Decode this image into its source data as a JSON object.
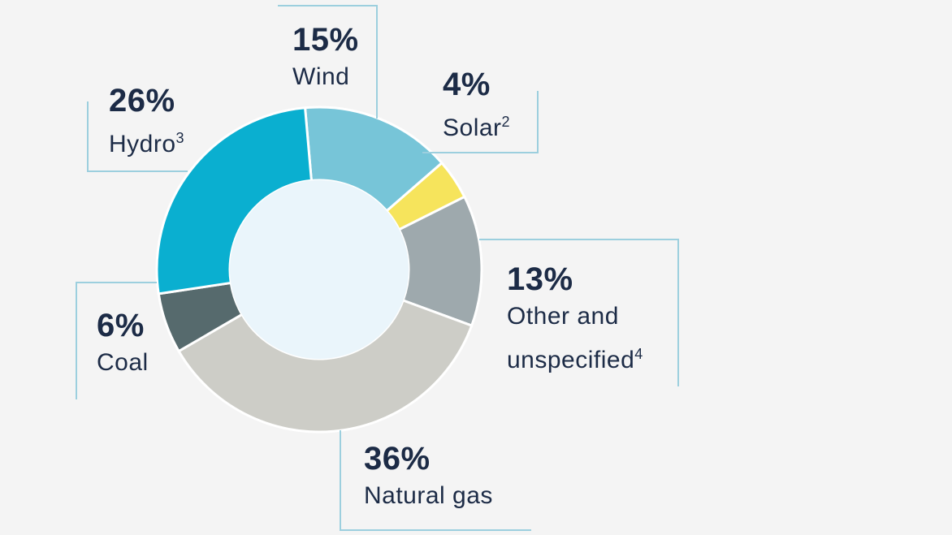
{
  "chart_data": {
    "type": "pie",
    "variant": "donut",
    "slices": [
      {
        "label": "Wind",
        "label_suffix": "",
        "superscript": "",
        "percent_label": "15%",
        "value": 15,
        "color": "#77c5d8"
      },
      {
        "label": "Solar",
        "label_suffix": "",
        "superscript": "2",
        "percent_label": "4%",
        "value": 4,
        "color": "#f6e45c"
      },
      {
        "label": "Other and",
        "label_suffix": "unspecified",
        "superscript": "4",
        "percent_label": "13%",
        "value": 13,
        "color": "#9ea9ad"
      },
      {
        "label": "Natural gas",
        "label_suffix": "",
        "superscript": "",
        "percent_label": "36%",
        "value": 36,
        "color": "#cdcdc7"
      },
      {
        "label": "Coal",
        "label_suffix": "",
        "superscript": "",
        "percent_label": "6%",
        "value": 6,
        "color": "#566a6d"
      },
      {
        "label": "Hydro",
        "label_suffix": "",
        "superscript": "3",
        "percent_label": "26%",
        "value": 26,
        "color": "#0aafd0"
      }
    ],
    "colors": {
      "background": "#f4f4f4",
      "donut_hole": "#eaf5fb",
      "callout_line": "#9ccfde",
      "text": "#1c2b46",
      "slice_separator": "#ffffff"
    }
  }
}
